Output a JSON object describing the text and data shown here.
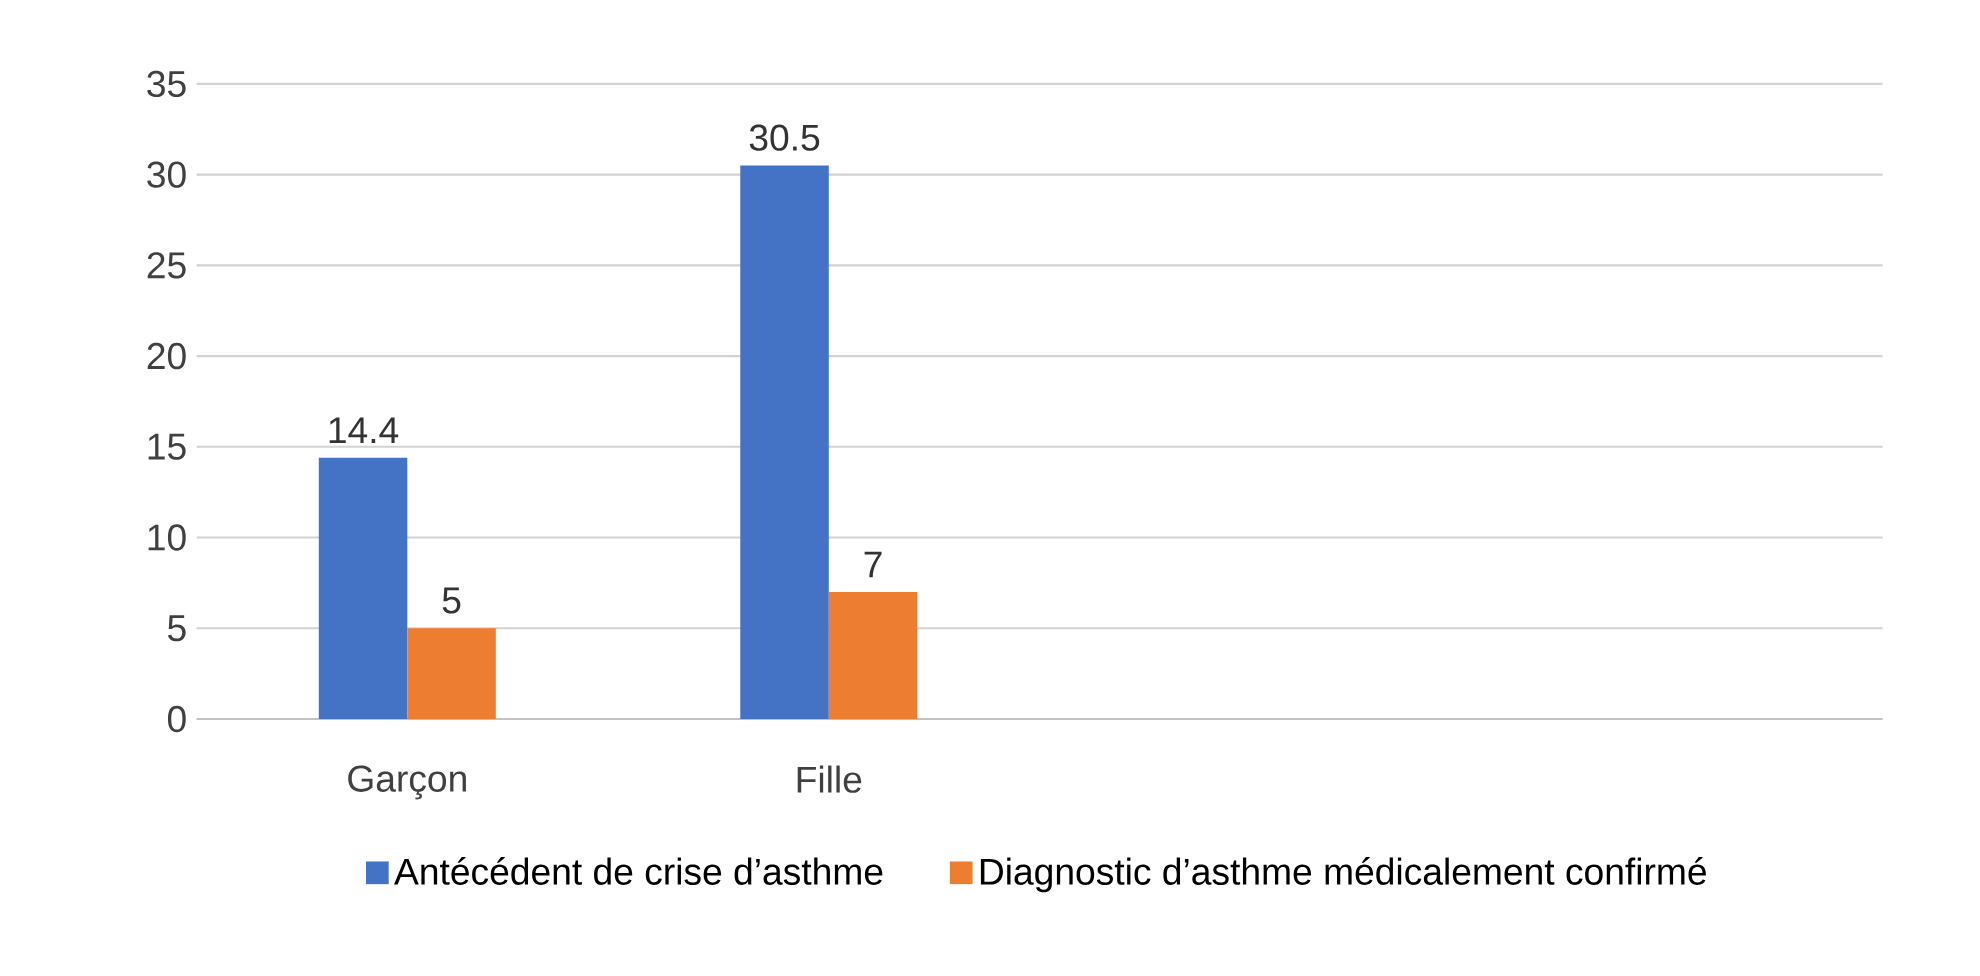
{
  "chart_data": {
    "type": "bar",
    "categories": [
      "Garçon",
      "Fille"
    ],
    "series": [
      {
        "name": "Antécédent de crise d’asthme",
        "color": "#4472c4",
        "values": [
          14.4,
          30.5
        ]
      },
      {
        "name": "Diagnostic d’asthme médicalement confirmé",
        "color": "#ed7d31",
        "values": [
          5,
          7
        ]
      }
    ],
    "ylim": [
      0,
      35
    ],
    "yticks": [
      0,
      5,
      10,
      15,
      20,
      25,
      30,
      35
    ],
    "grid": "y",
    "legend": "bottom",
    "data_labels": true
  }
}
